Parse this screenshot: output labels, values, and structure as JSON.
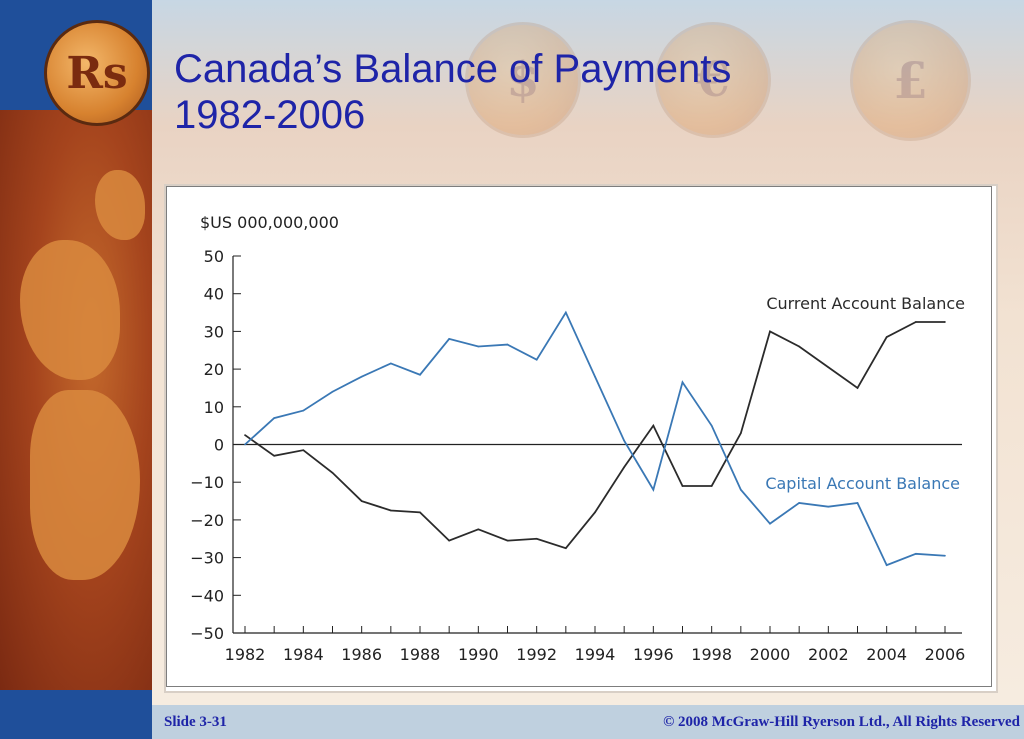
{
  "slide": {
    "title_line1": "Canada’s Balance of Payments",
    "title_line2": "1982-2006",
    "slide_number": "Slide 3-31",
    "copyright": "© 2008 McGraw-Hill Ryerson Ltd., All Rights Reserved",
    "coin_labels": [
      "Rs",
      "$",
      "€",
      "£"
    ],
    "title_color": "#1e24a8",
    "footer_color": "#bfd0df"
  },
  "chart_data": {
    "type": "line",
    "title": "",
    "ylabel": "$US 000,000,000",
    "xlabel": "",
    "ylim": [
      -50,
      50
    ],
    "xlim": [
      1982,
      2006
    ],
    "yticks": [
      50,
      40,
      30,
      20,
      10,
      0,
      -10,
      -20,
      -30,
      -40,
      -50
    ],
    "ytick_labels": [
      "50",
      "40",
      "30",
      "20",
      "10",
      "0",
      "−10",
      "−20",
      "−30",
      "−40",
      "−50"
    ],
    "xticks": [
      1982,
      1984,
      1986,
      1988,
      1990,
      1992,
      1994,
      1996,
      1998,
      2000,
      2002,
      2004,
      2006
    ],
    "xtick_labels": [
      "1982",
      "1984",
      "1986",
      "1988",
      "1990",
      "1992",
      "1994",
      "1996",
      "1998",
      "2000",
      "2002",
      "2004",
      "2006"
    ],
    "zero_line": true,
    "grid": false,
    "legend": "inline labels",
    "x": [
      1982,
      1983,
      1984,
      1985,
      1986,
      1987,
      1988,
      1989,
      1990,
      1991,
      1992,
      1993,
      1994,
      1995,
      1996,
      1997,
      1998,
      1999,
      2000,
      2001,
      2002,
      2003,
      2004,
      2005,
      2006
    ],
    "series": [
      {
        "name": "Current Account Balance",
        "color": "#2b2b2b",
        "values": [
          2.5,
          -3,
          -1.5,
          -7.5,
          -15,
          -17.5,
          -18,
          -25.5,
          -22.5,
          -25.5,
          -25,
          -27.5,
          -18,
          -6,
          5,
          -11,
          -11,
          3,
          30,
          26,
          20.5,
          15,
          28.5,
          32.5,
          32.5
        ]
      },
      {
        "name": "Capital Account Balance",
        "color": "#3a78b5",
        "values": [
          0,
          7,
          9,
          14,
          18,
          21.5,
          18.5,
          28,
          26,
          26.5,
          22.5,
          35,
          18,
          1,
          -12,
          16.5,
          5,
          -12,
          -21,
          -15.5,
          -16.5,
          -15.5,
          -32,
          -29,
          -29.5
        ]
      }
    ]
  }
}
